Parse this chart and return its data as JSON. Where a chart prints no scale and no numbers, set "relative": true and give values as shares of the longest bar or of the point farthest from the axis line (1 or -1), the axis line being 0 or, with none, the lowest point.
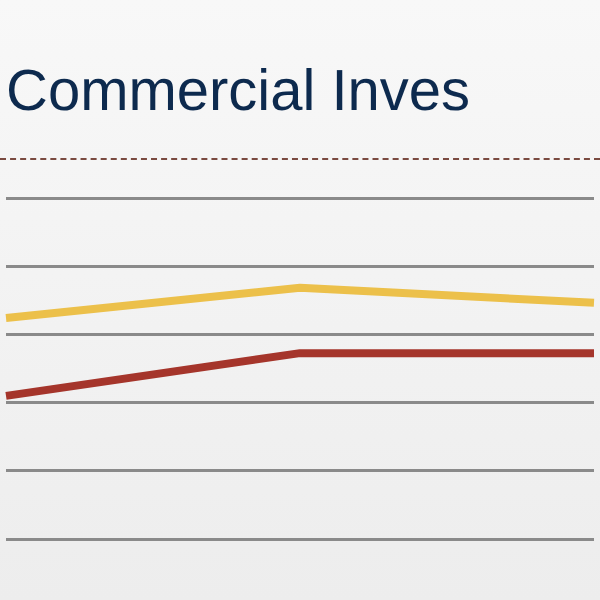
{
  "chart_data": {
    "type": "line",
    "title": "Commercial Inves",
    "relative": true,
    "categories": [
      null,
      null,
      null
    ],
    "series": [
      {
        "color": "#ecc04a",
        "values": [
          0.88,
          1,
          0.94
        ]
      },
      {
        "color": "#a5352b",
        "values": [
          0.57,
          0.74,
          0.74
        ]
      }
    ],
    "grid": "y",
    "legend": false,
    "marker": "none",
    "line_style": "solid"
  }
}
